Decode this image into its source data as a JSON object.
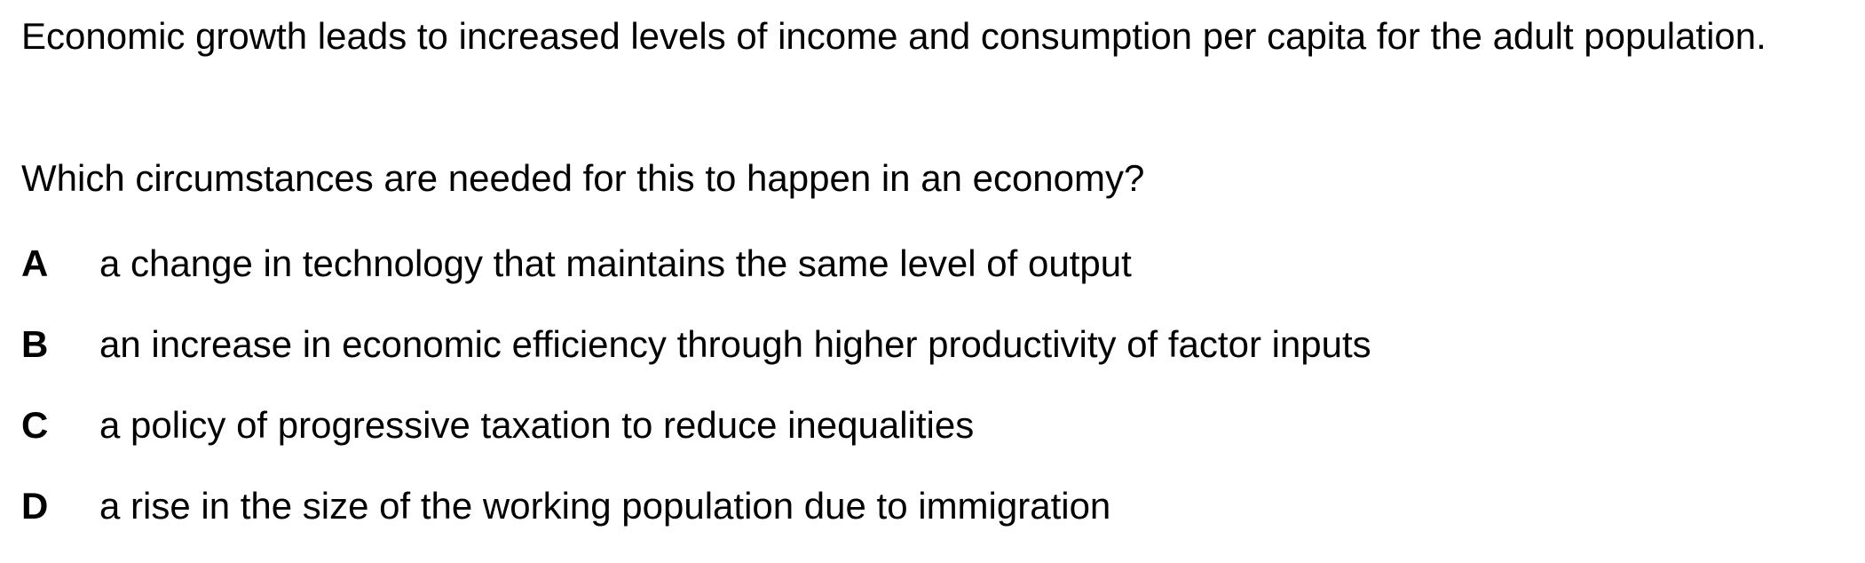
{
  "question": {
    "stem": "Economic growth leads to increased levels of income and consumption per capita for the adult population.",
    "prompt": "Which circumstances are needed for this to happen in an economy?",
    "options": [
      {
        "letter": "A",
        "text": "a change in technology that maintains the same level of output"
      },
      {
        "letter": "B",
        "text": "an increase in economic efficiency through higher productivity of factor inputs"
      },
      {
        "letter": "C",
        "text": "a policy of progressive taxation to reduce inequalities"
      },
      {
        "letter": "D",
        "text": "a rise in the size of the working population due to immigration"
      }
    ]
  }
}
